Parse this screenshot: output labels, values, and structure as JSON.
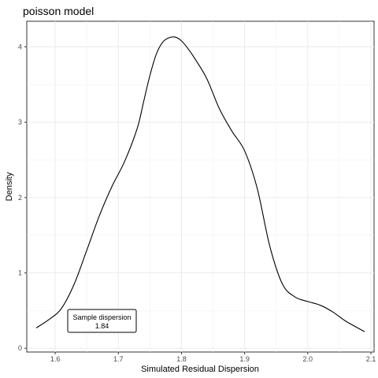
{
  "chart_data": {
    "type": "line",
    "title": "poisson model",
    "xlabel": "Simulated Residual Dispersion",
    "ylabel": "Density",
    "xlim": [
      1.555,
      2.105
    ],
    "ylim": [
      -0.05,
      4.34
    ],
    "x_ticks": [
      1.6,
      1.7,
      1.8,
      1.9,
      2.0,
      2.1
    ],
    "x_tick_labels": [
      "1.6",
      "1.7",
      "1.8",
      "1.9",
      "2.0",
      "2.1"
    ],
    "y_ticks": [
      0,
      1,
      2,
      3,
      4
    ],
    "y_tick_labels": [
      "0",
      "1",
      "2",
      "3",
      "4"
    ],
    "grid": true,
    "series": [
      {
        "x": [
          1.57,
          1.59,
          1.61,
          1.63,
          1.65,
          1.67,
          1.69,
          1.71,
          1.73,
          1.74,
          1.75,
          1.76,
          1.77,
          1.78,
          1.79,
          1.8,
          1.81,
          1.82,
          1.84,
          1.86,
          1.88,
          1.9,
          1.92,
          1.94,
          1.96,
          1.98,
          2.0,
          2.02,
          2.04,
          2.06,
          2.09
        ],
        "y": [
          0.27,
          0.38,
          0.53,
          0.85,
          1.3,
          1.76,
          2.15,
          2.48,
          2.92,
          3.27,
          3.62,
          3.9,
          4.06,
          4.12,
          4.13,
          4.08,
          3.98,
          3.86,
          3.58,
          3.18,
          2.88,
          2.62,
          2.12,
          1.35,
          0.85,
          0.68,
          0.62,
          0.57,
          0.48,
          0.36,
          0.22
        ]
      }
    ],
    "annotation": {
      "line1": "Sample dispersion",
      "line2": "1.84"
    }
  }
}
